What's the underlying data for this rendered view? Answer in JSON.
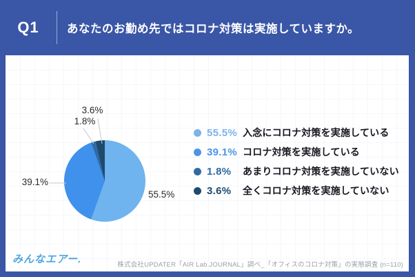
{
  "header": {
    "q_label": "Q1",
    "question": "あなたのお勤め先ではコロナ対策は実施していますか。"
  },
  "chart_data": {
    "type": "pie",
    "title": "あなたのお勤め先ではコロナ対策は実施していますか。",
    "direction": "clockwise",
    "start_angle_deg": 0,
    "legend_position": "right",
    "slices": [
      {
        "label": "入念にコロナ対策を実施している",
        "value": 55.5,
        "display": "55.5%",
        "color": "#6FB3EF",
        "legend_color": "#7EB2E8"
      },
      {
        "label": "コロナ対策を実施している",
        "value": 39.1,
        "display": "39.1%",
        "color": "#3F91EB",
        "legend_color": "#4C96E6"
      },
      {
        "label": "あまりコロナ対策を実施していない",
        "value": 1.8,
        "display": "1.8%",
        "color": "#2E6DA4",
        "legend_color": "#2F6BA0"
      },
      {
        "label": "全くコロナ対策を実施していない",
        "value": 3.6,
        "display": "3.6%",
        "color": "#1F4A6E",
        "legend_color": "#1F4A6E"
      }
    ]
  },
  "footer": {
    "logo": "みんなエアー.",
    "source": "株式会社UPDATER「AIR Lab.JOURNAL」調べ_「オフィスのコロナ対策」の実態調査 (n=110)"
  },
  "colors": {
    "banner": "#3A56A6",
    "panel": "#FFFFFF"
  }
}
